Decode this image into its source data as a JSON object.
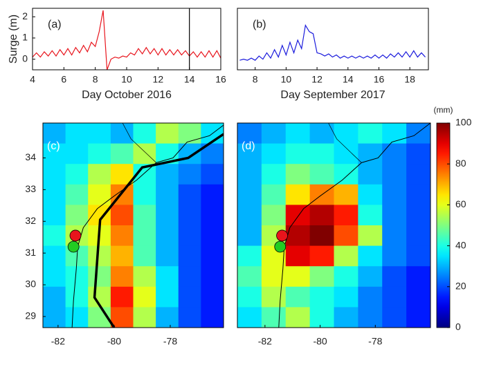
{
  "chart_data": [
    {
      "type": "line",
      "annotation": "(a)",
      "ylabel": "Surge (m)",
      "xlabel": "Day October 2016",
      "xlim": [
        4,
        16
      ],
      "xticks": [
        4,
        6,
        8,
        10,
        12,
        14,
        16
      ],
      "ylim": [
        -0.5,
        2.4
      ],
      "yticks": [
        0,
        1,
        2
      ],
      "vline": 14,
      "series": [
        {
          "color": "#e8141c",
          "x": [
            4,
            4.25,
            4.5,
            4.75,
            5,
            5.25,
            5.5,
            5.75,
            6,
            6.25,
            6.5,
            6.75,
            7,
            7.25,
            7.5,
            7.75,
            8,
            8.25,
            8.5,
            8.75,
            9,
            9.25,
            9.5,
            9.75,
            10,
            10.25,
            10.5,
            10.75,
            11,
            11.25,
            11.5,
            11.75,
            12,
            12.25,
            12.5,
            12.75,
            13,
            13.25,
            13.5,
            13.75,
            14,
            14.25,
            14.5,
            14.75,
            15,
            15.25,
            15.5,
            15.75,
            16
          ],
          "values": [
            0.1,
            0.3,
            0.1,
            0.35,
            0.15,
            0.4,
            0.15,
            0.45,
            0.2,
            0.5,
            0.2,
            0.55,
            0.3,
            0.65,
            0.35,
            0.8,
            0.6,
            1.3,
            2.3,
            -0.5,
            0.0,
            0.1,
            0.05,
            0.15,
            0.1,
            0.3,
            0.2,
            0.5,
            0.25,
            0.55,
            0.25,
            0.5,
            0.2,
            0.5,
            0.2,
            0.45,
            0.2,
            0.45,
            0.2,
            0.4,
            0.15,
            0.35,
            0.1,
            0.35,
            0.1,
            0.4,
            0.1,
            0.4,
            0.05
          ]
        }
      ]
    },
    {
      "type": "line",
      "annotation": "(b)",
      "xlabel": "Day September 2017",
      "xlim": [
        6.85,
        19.2
      ],
      "xticks": [
        8,
        10,
        12,
        14,
        16,
        18
      ],
      "ylim": [
        -0.5,
        2.4
      ],
      "series": [
        {
          "color": "#1a1adc",
          "x": [
            7,
            7.25,
            7.5,
            7.75,
            8,
            8.25,
            8.5,
            8.75,
            9,
            9.25,
            9.5,
            9.75,
            10,
            10.25,
            10.5,
            10.75,
            11,
            11.25,
            11.5,
            11.75,
            12,
            12.25,
            12.5,
            12.75,
            13,
            13.25,
            13.5,
            13.75,
            14,
            14.25,
            14.5,
            14.75,
            15,
            15.25,
            15.5,
            15.75,
            16,
            16.25,
            16.5,
            16.75,
            17,
            17.25,
            17.5,
            17.75,
            18,
            18.25,
            18.5,
            18.75,
            19
          ],
          "values": [
            -0.05,
            0.0,
            -0.05,
            0.05,
            -0.05,
            0.15,
            0.0,
            0.3,
            0.05,
            0.45,
            0.1,
            0.65,
            0.2,
            0.8,
            0.3,
            0.9,
            0.5,
            1.6,
            1.3,
            1.2,
            0.3,
            0.25,
            0.15,
            0.25,
            0.1,
            0.2,
            0.05,
            0.15,
            0.05,
            0.15,
            0.05,
            0.15,
            0.05,
            0.15,
            0.05,
            0.2,
            0.05,
            0.2,
            0.05,
            0.25,
            0.1,
            0.3,
            0.1,
            0.35,
            0.1,
            0.4,
            0.1,
            0.3,
            0.1
          ]
        }
      ]
    },
    {
      "type": "heatmap",
      "annotation": "(c)",
      "colormap": "jet",
      "vlim": [
        0,
        100
      ],
      "xlim": [
        -82.54,
        -76.1
      ],
      "xticks": [
        -82,
        -80,
        -78
      ],
      "ylim": [
        28.65,
        35.1
      ],
      "yticks": [
        29,
        30,
        31,
        32,
        33,
        34
      ],
      "values": [
        [
          30,
          35,
          35,
          30,
          40,
          55,
          50,
          35
        ],
        [
          35,
          35,
          40,
          45,
          55,
          40,
          30,
          25
        ],
        [
          35,
          40,
          55,
          65,
          40,
          30,
          25,
          20
        ],
        [
          35,
          45,
          60,
          75,
          40,
          30,
          20,
          15
        ],
        [
          35,
          50,
          65,
          80,
          45,
          30,
          20,
          15
        ],
        [
          40,
          55,
          60,
          75,
          45,
          30,
          20,
          15
        ],
        [
          35,
          45,
          55,
          70,
          45,
          30,
          20,
          15
        ],
        [
          35,
          40,
          50,
          75,
          55,
          35,
          20,
          15
        ],
        [
          30,
          40,
          55,
          85,
          60,
          35,
          20,
          15
        ],
        [
          30,
          35,
          50,
          80,
          55,
          30,
          20,
          15
        ]
      ],
      "track": {
        "x": [
          -76.1,
          -77.36,
          -79.0,
          -80.5,
          -80.7,
          -80.0
        ],
        "y": [
          34.75,
          34.0,
          33.7,
          32.05,
          29.6,
          28.65
        ]
      },
      "points": [
        {
          "x": -81.38,
          "y": 31.55,
          "color": "#e8141c"
        },
        {
          "x": -81.45,
          "y": 31.2,
          "color": "#22cc22"
        }
      ]
    },
    {
      "type": "heatmap",
      "annotation": "(d)",
      "colormap": "jet",
      "vlim": [
        0,
        100
      ],
      "xlim": [
        -83,
        -76
      ],
      "xticks": [
        -82,
        -80,
        -78
      ],
      "ylim": [
        28.65,
        35.1
      ],
      "values": [
        [
          25,
          30,
          35,
          30,
          35,
          40,
          35,
          25
        ],
        [
          30,
          35,
          40,
          40,
          35,
          30,
          25,
          20
        ],
        [
          30,
          40,
          50,
          45,
          40,
          30,
          25,
          20
        ],
        [
          30,
          45,
          65,
          75,
          70,
          35,
          25,
          20
        ],
        [
          30,
          50,
          90,
          95,
          85,
          40,
          25,
          20
        ],
        [
          30,
          55,
          95,
          100,
          80,
          55,
          25,
          20
        ],
        [
          40,
          60,
          90,
          85,
          55,
          35,
          25,
          20
        ],
        [
          45,
          60,
          60,
          50,
          40,
          30,
          20,
          15
        ],
        [
          40,
          55,
          45,
          40,
          35,
          25,
          20,
          15
        ],
        [
          35,
          45,
          55,
          40,
          30,
          25,
          20,
          15
        ]
      ],
      "points": [
        {
          "x": -81.38,
          "y": 31.55,
          "color": "#e8141c"
        },
        {
          "x": -81.45,
          "y": 31.2,
          "color": "#22cc22"
        }
      ],
      "colorbar": {
        "label": "(mm)",
        "ticks": [
          0,
          20,
          40,
          60,
          80,
          100
        ]
      }
    }
  ]
}
